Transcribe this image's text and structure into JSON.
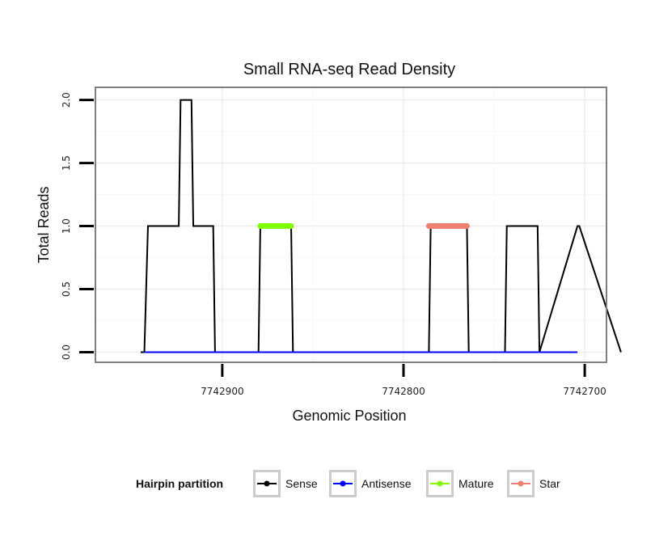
{
  "chart_data": {
    "type": "line",
    "title": "Small RNA-seq Read Density",
    "xlabel": "Genomic Position",
    "ylabel": "Total Reads",
    "x_reversed": true,
    "xlim": [
      7742970,
      7742688
    ],
    "ylim": [
      -0.08,
      2.1
    ],
    "x_ticks": [
      7742900,
      7742800,
      7742700
    ],
    "x_tick_labels": [
      "7742900",
      "7742800",
      "7742700"
    ],
    "y_ticks": [
      0.0,
      0.5,
      1.0,
      1.5,
      2.0
    ],
    "y_tick_labels": [
      "0.0",
      "0.5",
      "1.0",
      "1.5",
      "2.0"
    ],
    "grid": true,
    "legend": {
      "title": "Hairpin partition",
      "position": "bottom",
      "entries": [
        {
          "name": "Sense",
          "color": "#000000"
        },
        {
          "name": "Antisense",
          "color": "#0000ff"
        },
        {
          "name": "Mature",
          "color": "#80ff00"
        },
        {
          "name": "Star",
          "color": "#f08070"
        }
      ]
    },
    "series": [
      {
        "name": "Sense",
        "color": "#000000",
        "x": [
          7742945,
          7742943,
          7742941,
          7742924,
          7742923,
          7742917,
          7742916,
          7742905,
          7742904,
          7742880,
          7742879,
          7742862,
          7742861,
          7742786,
          7742785,
          7742765,
          7742764,
          7742744,
          7742743,
          7742726,
          7742725,
          7742704,
          7742703,
          7742680
        ],
        "y": [
          0,
          0,
          1,
          1,
          2,
          2,
          1,
          1,
          0,
          0,
          1,
          1,
          0,
          0,
          1,
          1,
          0,
          0,
          1,
          1,
          0,
          1,
          1,
          0
        ]
      },
      {
        "name": "Antisense",
        "color": "#0000ff",
        "x": [
          7742943,
          7742704
        ],
        "y": [
          0,
          0
        ]
      },
      {
        "name": "Mature",
        "color": "#80ff00",
        "x": [
          7742879,
          7742862
        ],
        "y": [
          1,
          1
        ]
      },
      {
        "name": "Star",
        "color": "#f08070",
        "x": [
          7742786,
          7742765
        ],
        "y": [
          1,
          1
        ]
      }
    ]
  }
}
